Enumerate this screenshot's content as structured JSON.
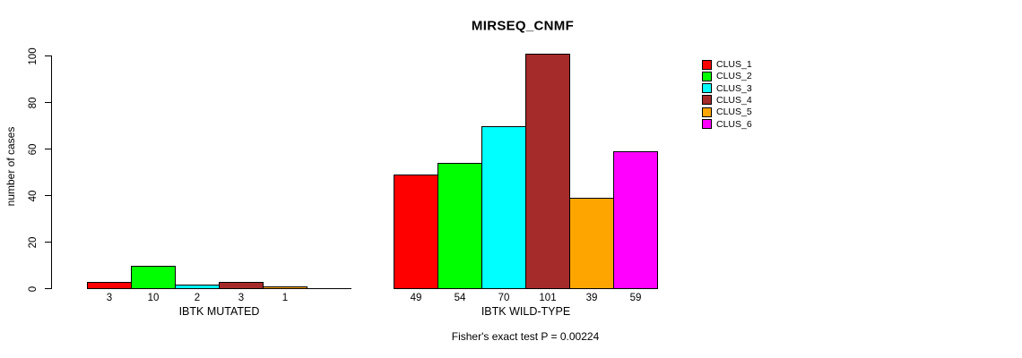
{
  "chart_data": {
    "type": "bar",
    "title": "MIRSEQ_CNMF",
    "ylabel": "number of cases",
    "ylim": [
      0,
      100
    ],
    "yticks": [
      0,
      20,
      40,
      60,
      80,
      100
    ],
    "grid": false,
    "legend_position": "top-right",
    "annotation": "Fisher's exact test P = 0.00224",
    "clusters": [
      {
        "name": "CLUS_1",
        "color": "#FF0000"
      },
      {
        "name": "CLUS_2",
        "color": "#00FF00"
      },
      {
        "name": "CLUS_3",
        "color": "#00FFFF"
      },
      {
        "name": "CLUS_4",
        "color": "#A52A2A"
      },
      {
        "name": "CLUS_5",
        "color": "#FFA500"
      },
      {
        "name": "CLUS_6",
        "color": "#FF00FF"
      }
    ],
    "groups": [
      {
        "label": "IBTK MUTATED",
        "values": [
          3,
          10,
          2,
          3,
          1,
          0
        ]
      },
      {
        "label": "IBTK WILD-TYPE",
        "values": [
          49,
          54,
          70,
          101,
          39,
          59
        ]
      }
    ]
  }
}
